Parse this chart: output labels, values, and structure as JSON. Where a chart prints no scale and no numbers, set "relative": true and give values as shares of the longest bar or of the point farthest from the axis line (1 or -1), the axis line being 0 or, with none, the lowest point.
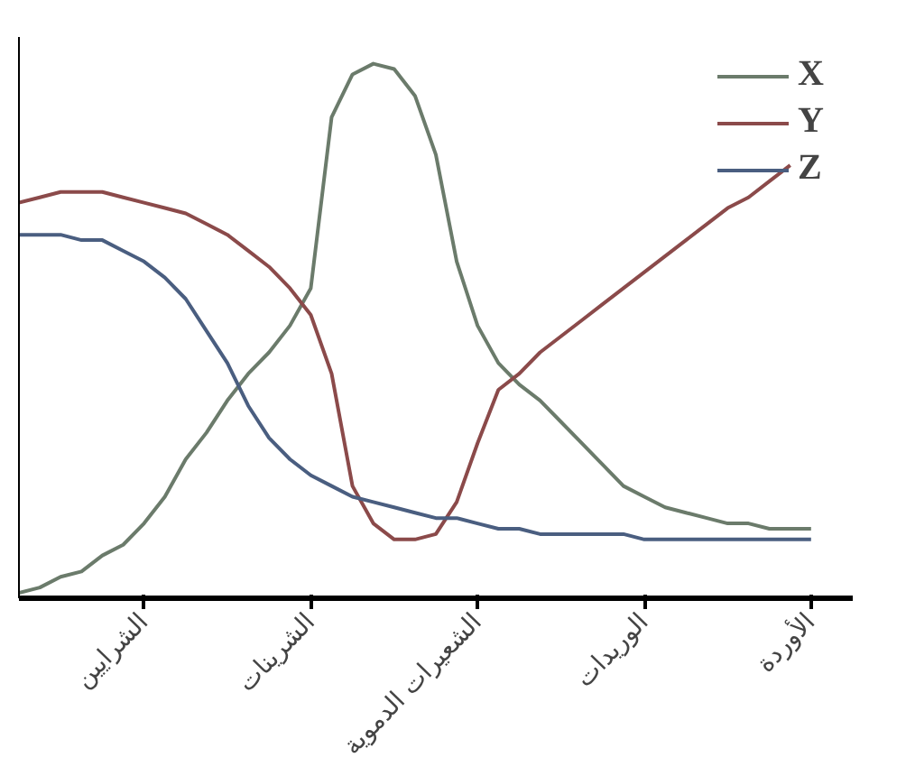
{
  "chart_data": {
    "type": "line",
    "relative": true,
    "categories": [
      null,
      null,
      null,
      null,
      null,
      null,
      "الشرايين",
      null,
      null,
      null,
      null,
      null,
      null,
      null,
      "الشرينات",
      null,
      null,
      null,
      null,
      null,
      null,
      null,
      "الشعيرات الدموية",
      null,
      null,
      null,
      null,
      null,
      null,
      null,
      "الوريدات",
      null,
      null,
      null,
      null,
      null,
      null,
      null,
      "الأوردة"
    ],
    "series": [
      {
        "name": "X",
        "color": "#6b7b6b",
        "values": [
          0.01,
          0.02,
          0.04,
          0.05,
          0.08,
          0.1,
          0.14,
          0.19,
          0.26,
          0.31,
          0.37,
          0.42,
          0.46,
          0.51,
          0.58,
          0.9,
          0.98,
          1.0,
          0.99,
          0.94,
          0.83,
          0.63,
          0.51,
          0.44,
          0.4,
          0.37,
          0.33,
          0.29,
          0.25,
          0.21,
          0.19,
          0.17,
          0.16,
          0.15,
          0.14,
          0.14,
          0.13,
          0.13,
          0.13
        ]
      },
      {
        "name": "Y",
        "color": "#8b4a4a",
        "values": [
          0.74,
          0.75,
          0.76,
          0.76,
          0.76,
          0.75,
          0.74,
          0.73,
          0.72,
          0.7,
          0.68,
          0.65,
          0.62,
          0.58,
          0.53,
          0.42,
          0.21,
          0.14,
          0.11,
          0.11,
          0.12,
          0.18,
          0.29,
          0.39,
          0.42,
          0.46,
          0.49,
          0.52,
          0.55,
          0.58,
          0.61,
          0.64,
          0.67,
          0.7,
          0.73,
          0.75,
          0.78,
          0.81,
          null
        ]
      },
      {
        "name": "Z",
        "color": "#4a5e80",
        "values": [
          0.68,
          0.68,
          0.68,
          0.67,
          0.67,
          0.65,
          0.63,
          0.6,
          0.56,
          0.5,
          0.44,
          0.36,
          0.3,
          0.26,
          0.23,
          0.21,
          0.19,
          0.18,
          0.17,
          0.16,
          0.15,
          0.15,
          0.14,
          0.13,
          0.13,
          0.12,
          0.12,
          0.12,
          0.12,
          0.12,
          0.11,
          0.11,
          0.11,
          0.11,
          0.11,
          0.11,
          0.11,
          0.11,
          0.11
        ]
      }
    ],
    "legend": "top right",
    "grid": false,
    "marker": "none",
    "line_style": "solid"
  }
}
